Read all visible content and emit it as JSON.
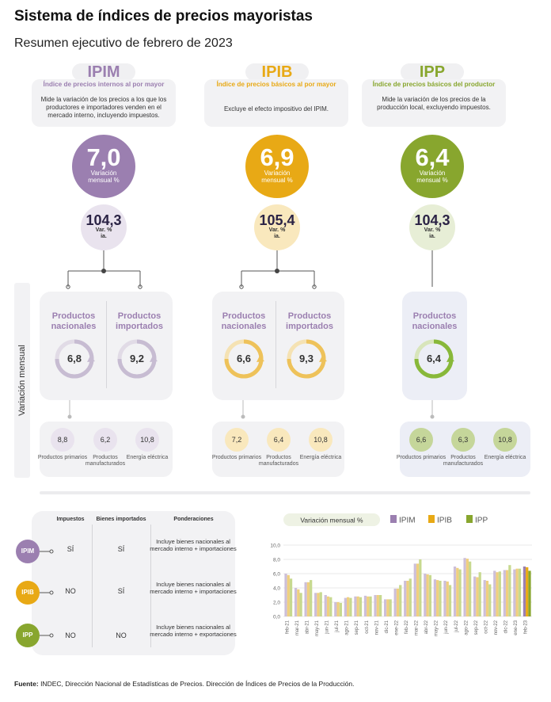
{
  "title": "Sistema de índices de precios mayoristas",
  "subtitle": "Resumen ejecutivo de febrero de 2023",
  "colors": {
    "ipim": "#9b7fb0",
    "ipib": "#e8a915",
    "ipp": "#88a62e",
    "ipim_light": "#e9e3ee",
    "ipib_light": "#f9e8bd",
    "ipp_light": "#e7eed6"
  },
  "indices": [
    {
      "code": "IPIM",
      "name": "Índice de precios internos al por mayor",
      "desc": "Mide la variación de los precios a los que los productores e importadores venden en el mercado interno, incluyendo impuestos.",
      "monthly": "7,0",
      "monthly_label": "Variación mensual %",
      "yoy": "104,3",
      "yoy_label": "Var. % ia."
    },
    {
      "code": "IPIB",
      "name": "Índice de precios básicos al por mayor",
      "desc": "Excluye el efecto impositivo del IPIM.",
      "monthly": "6,9",
      "monthly_label": "Variación mensual %",
      "yoy": "105,4",
      "yoy_label": "Var. % ia."
    },
    {
      "code": "IPP",
      "name": "Índice de precios básicos del productor",
      "desc": "Mide la variación de los precios de la producción local, excluyendo impuestos.",
      "monthly": "6,4",
      "monthly_label": "Variación mensual %",
      "yoy": "104,3",
      "yoy_label": "Var. % ia."
    }
  ],
  "side_label": "Variación mensual",
  "products": {
    "ipim": [
      {
        "label": "Productos nacionales",
        "value": "6,8"
      },
      {
        "label": "Productos importados",
        "value": "9,2"
      }
    ],
    "ipib": [
      {
        "label": "Productos nacionales",
        "value": "6,6"
      },
      {
        "label": "Productos importados",
        "value": "9,3"
      }
    ],
    "ipp": [
      {
        "label": "Productos nacionales",
        "value": "6,4"
      }
    ]
  },
  "subcategories": {
    "ipim": [
      {
        "label": "Productos primarios",
        "value": "8,8"
      },
      {
        "label": "Productos manufacturados",
        "value": "6,2"
      },
      {
        "label": "Energía eléctrica",
        "value": "10,8"
      }
    ],
    "ipib": [
      {
        "label": "Productos primarios",
        "value": "7,2"
      },
      {
        "label": "Productos manufacturados",
        "value": "6,4"
      },
      {
        "label": "Energía eléctrica",
        "value": "10,8"
      }
    ],
    "ipp": [
      {
        "label": "Productos primarios",
        "value": "6,6"
      },
      {
        "label": "Productos manufacturados",
        "value": "6,3"
      },
      {
        "label": "Energía eléctrica",
        "value": "10,8"
      }
    ]
  },
  "table": {
    "headers": [
      "Impuestos",
      "Bienes importados",
      "Ponderaciones"
    ],
    "rows": [
      {
        "code": "IPIM",
        "impuestos": "SÍ",
        "importados": "SÍ",
        "ponderaciones": "Incluye bienes nacionales al mercado interno + importaciones"
      },
      {
        "code": "IPIB",
        "impuestos": "NO",
        "importados": "SÍ",
        "ponderaciones": "Incluye bienes nacionales al mercado interno + importaciones"
      },
      {
        "code": "IPP",
        "impuestos": "NO",
        "importados": "NO",
        "ponderaciones": "Incluye bienes nacionales al mercado interno + exportaciones"
      }
    ]
  },
  "chart_data": {
    "type": "bar",
    "title": "Variación mensual %",
    "categories": [
      "feb-21",
      "mar-21",
      "abr-21",
      "may-21",
      "jun-21",
      "jul-21",
      "ago-21",
      "sep-21",
      "oct-21",
      "nov-21",
      "dic-21",
      "ene-22",
      "feb-22",
      "mar-22",
      "abr-22",
      "may-22",
      "jun-22",
      "jul-22",
      "ago-22",
      "sep-22",
      "oct-22",
      "nov-22",
      "dic-22",
      "ene-23",
      "feb-23"
    ],
    "tick_labels": [
      "feb-21",
      "mar-21",
      "abr-21",
      "may-21",
      "jun-21",
      "jul-21",
      "ago-21",
      "sep-21",
      "oct-21",
      "nov-21",
      "dic-21",
      "ene-22",
      "feb-22",
      "mar-22",
      "abr-22",
      "may-22",
      "jun-22",
      "jul-22",
      "ago-22",
      "sep-22",
      "oct-22",
      "nov-22",
      "dic-22",
      "ene-23",
      "feb-23"
    ],
    "series": [
      {
        "name": "IPIM",
        "values": [
          6.0,
          4.0,
          4.8,
          3.3,
          3.0,
          2.0,
          2.6,
          2.8,
          2.9,
          3.0,
          2.4,
          3.9,
          5.0,
          7.4,
          6.0,
          5.2,
          5.0,
          7.0,
          8.2,
          5.6,
          5.1,
          6.4,
          6.5,
          6.6,
          7.0
        ]
      },
      {
        "name": "IPIB",
        "values": [
          5.8,
          3.8,
          4.8,
          3.3,
          2.8,
          2.0,
          2.7,
          2.8,
          2.8,
          3.0,
          2.4,
          3.9,
          5.0,
          7.4,
          5.9,
          5.1,
          4.9,
          6.8,
          8.1,
          5.5,
          5.0,
          6.2,
          6.5,
          6.7,
          6.9
        ]
      },
      {
        "name": "IPP",
        "values": [
          5.3,
          3.3,
          5.1,
          3.4,
          2.7,
          1.9,
          2.6,
          2.7,
          2.8,
          3.0,
          2.4,
          4.4,
          5.3,
          8.0,
          5.8,
          5.0,
          4.4,
          6.6,
          7.7,
          6.2,
          4.5,
          6.3,
          7.2,
          6.7,
          6.4
        ]
      }
    ],
    "yticks": [
      "10,0",
      "8,0",
      "6,0",
      "4,0",
      "2,0",
      "0,0"
    ],
    "ylim": [
      0,
      10
    ],
    "grid": true,
    "legend": "top"
  },
  "footer_bold": "Fuente:",
  "footer_text": " INDEC, Dirección Nacional de Estadísticas de Precios. Dirección de Índices de Precios de la Producción."
}
